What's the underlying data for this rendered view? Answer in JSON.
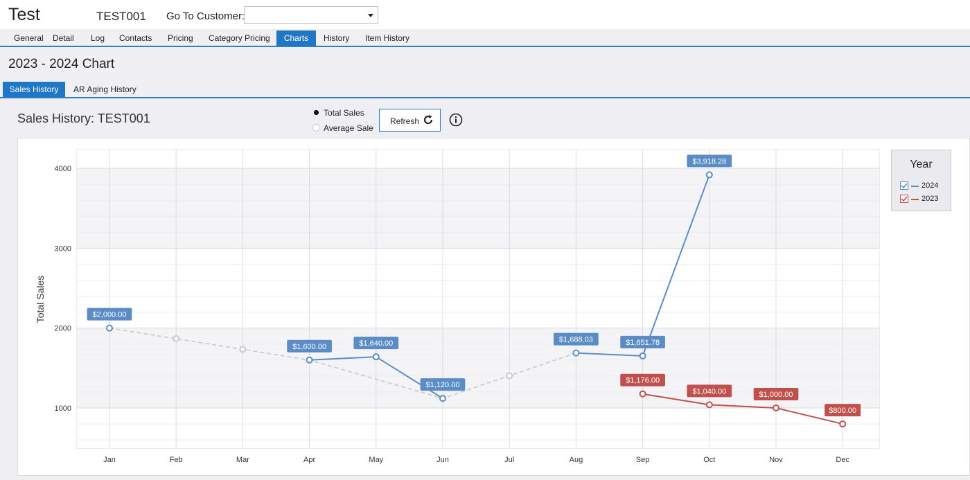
{
  "header": {
    "app_title": "Test",
    "customer_code": "TEST001",
    "goto_label": "Go To Customer:",
    "goto_value": ""
  },
  "tabs": [
    {
      "label": "General"
    },
    {
      "label": "Detail"
    },
    {
      "label": "Log"
    },
    {
      "label": "Contacts"
    },
    {
      "label": "Pricing"
    },
    {
      "label": "Category Pricing"
    },
    {
      "label": "Charts"
    },
    {
      "label": "History"
    },
    {
      "label": "Item History"
    }
  ],
  "active_tab": "Charts",
  "chart_heading": "2023 - 2024 Chart",
  "subtabs": [
    {
      "label": "Sales History"
    },
    {
      "label": "AR Aging History"
    }
  ],
  "active_subtab": "Sales History",
  "sales_title": "Sales History: TEST001",
  "options": {
    "total_sales": "Total Sales",
    "average_sale": "Average Sale",
    "selected": "total_sales"
  },
  "refresh_label": "Refresh",
  "icons": {
    "refresh": "refresh-icon",
    "info": "info-icon",
    "dropdown": "chevron-down-icon"
  },
  "legend": {
    "title": "Year",
    "items": [
      {
        "label": "2024",
        "color": "#5b8cc6",
        "checked": true
      },
      {
        "label": "2023",
        "color": "#c0504d",
        "checked": true
      }
    ]
  },
  "chart_data": {
    "type": "line",
    "title": "",
    "xlabel": "",
    "ylabel": "Total Sales",
    "categories": [
      "Jan",
      "Feb",
      "Mar",
      "Apr",
      "May",
      "Jun",
      "Jul",
      "Aug",
      "Sep",
      "Oct",
      "Nov",
      "Dec"
    ],
    "ylim": [
      500,
      4200
    ],
    "yticks": [
      1000,
      2000,
      3000,
      4000
    ],
    "grid": true,
    "legend_position": "right",
    "series": [
      {
        "name": "2024",
        "color": "#5b8cc6",
        "values": [
          2000,
          null,
          null,
          1600,
          1640,
          1120,
          null,
          1688.03,
          1651.78,
          3918.28,
          null,
          null
        ],
        "labels": [
          "$2,000.00",
          "",
          "",
          "$1,600.00",
          "$1,640.00",
          "$1,120.00",
          "",
          "$1,688.03",
          "$1,651.78",
          "$3,918.28",
          "",
          ""
        ]
      },
      {
        "name": "2023",
        "color": "#c0504d",
        "values": [
          null,
          null,
          null,
          null,
          null,
          null,
          null,
          null,
          1176,
          1040,
          1000,
          800
        ],
        "labels": [
          "",
          "",
          "",
          "",
          "",
          "",
          "",
          "",
          "$1,176.00",
          "$1,040.00",
          "$1,000.00",
          "$800.00"
        ]
      }
    ],
    "interpolated": {
      "color": "#c8c8c8",
      "points": [
        {
          "x": "Jan",
          "y": 2000
        },
        {
          "x": "Feb",
          "y": 1866.67
        },
        {
          "x": "Mar",
          "y": 1733.33
        },
        {
          "x": "Apr",
          "y": 1600
        },
        {
          "x": "Jun",
          "y": 1120
        },
        {
          "x": "Jul",
          "y": 1404
        },
        {
          "x": "Aug",
          "y": 1688.03
        }
      ]
    }
  }
}
